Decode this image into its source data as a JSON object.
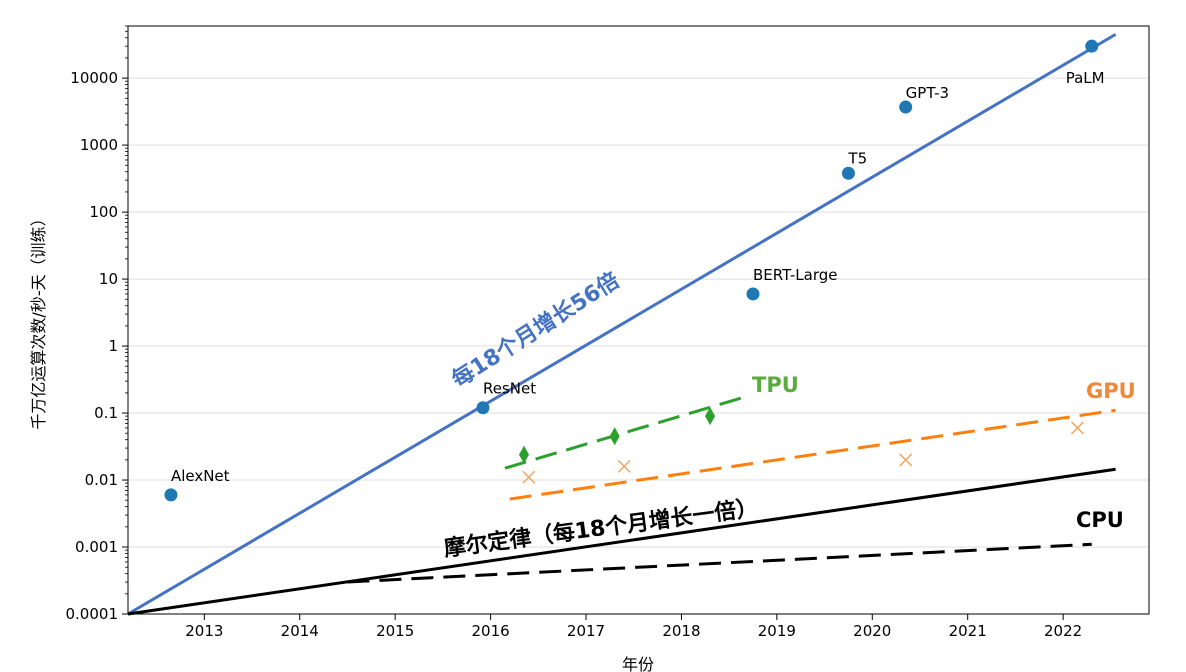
{
  "chart_data": {
    "type": "scatter",
    "xlabel": "年份",
    "ylabel": "千万亿运算次数/秒-天（训练）",
    "yscale": "log",
    "xlim": [
      2012.2,
      2022.9
    ],
    "ylim": [
      0.0001,
      60000
    ],
    "x_ticks": [
      2013,
      2014,
      2015,
      2016,
      2017,
      2018,
      2019,
      2020,
      2021,
      2022
    ],
    "y_ticks": [
      0.0001,
      0.001,
      0.01,
      0.1,
      1,
      10,
      100,
      1000,
      10000
    ],
    "y_tick_labels": [
      "0.0001",
      "0.001",
      "0.01",
      "0.1",
      "1",
      "10",
      "100",
      "1000",
      "10000"
    ],
    "grid_y": true,
    "colors": {
      "models": "#1f77b4",
      "trend": "#4472c4",
      "tpu": "#2ca02c",
      "tpu_label": "#5aab3c",
      "gpu": "#ff7f0e",
      "gpu_label": "#f0883c",
      "cpu": "#000000",
      "grid": "#dddddd"
    },
    "models": [
      {
        "name": "AlexNet",
        "x": 2012.65,
        "y": 0.006
      },
      {
        "name": "ResNet",
        "x": 2015.92,
        "y": 0.12
      },
      {
        "name": "BERT-Large",
        "x": 2018.75,
        "y": 6
      },
      {
        "name": "T5",
        "x": 2019.75,
        "y": 380
      },
      {
        "name": "GPT-3",
        "x": 2020.35,
        "y": 3700
      },
      {
        "name": "PaLM",
        "x": 2022.3,
        "y": 30000
      }
    ],
    "tpu_points": [
      {
        "x": 2016.35,
        "y": 0.024
      },
      {
        "x": 2017.3,
        "y": 0.045
      },
      {
        "x": 2018.3,
        "y": 0.09
      }
    ],
    "gpu_points": [
      {
        "x": 2016.4,
        "y": 0.011
      },
      {
        "x": 2017.4,
        "y": 0.016
      },
      {
        "x": 2020.35,
        "y": 0.02
      },
      {
        "x": 2022.15,
        "y": 0.06
      }
    ],
    "trend_lines": [
      {
        "name": "ai_trend",
        "x": [
          2012.2,
          2022.55
        ],
        "y": [
          0.0001,
          45000
        ],
        "style": "solid"
      },
      {
        "name": "moore",
        "x": [
          2012.2,
          2022.55
        ],
        "y": [
          0.0001,
          0.0145
        ],
        "style": "solid"
      },
      {
        "name": "cpu",
        "x": [
          2014.5,
          2022.3
        ],
        "y": [
          0.0003,
          0.0011
        ],
        "style": "dashed"
      },
      {
        "name": "gpu",
        "x": [
          2016.2,
          2022.55
        ],
        "y": [
          0.0052,
          0.11
        ],
        "style": "dashed"
      },
      {
        "name": "tpu",
        "x": [
          2016.15,
          2018.7
        ],
        "y": [
          0.015,
          0.18
        ],
        "style": "dashed"
      }
    ],
    "annotations": {
      "ai_trend": "每18个月增长56倍",
      "moore": "摩尔定律（每18个月增长一倍）",
      "tpu": "TPU",
      "gpu": "GPU",
      "cpu": "CPU"
    }
  }
}
